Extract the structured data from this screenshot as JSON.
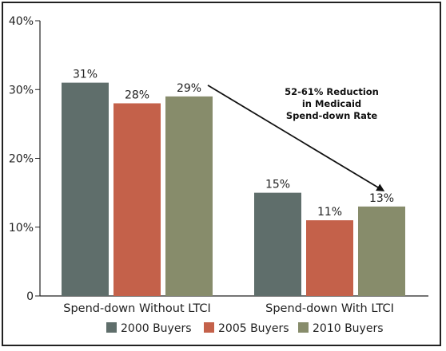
{
  "chart_data": {
    "type": "bar",
    "categories": [
      "Spend-down Without LTCI",
      "Spend-down With LTCI"
    ],
    "series": [
      {
        "name": "2000 Buyers",
        "values": [
          31,
          15
        ],
        "labels": [
          "31%",
          "15%"
        ]
      },
      {
        "name": "2005 Buyers",
        "values": [
          28,
          11
        ],
        "labels": [
          "28%",
          "11%"
        ]
      },
      {
        "name": "2010 Buyers",
        "values": [
          29,
          13
        ],
        "labels": [
          "29%",
          "13%"
        ]
      }
    ],
    "ylim": [
      0,
      40
    ],
    "yticks": [
      0,
      10,
      20,
      30,
      40
    ],
    "ytick_labels": [
      "0",
      "10%",
      "20%",
      "30%",
      "40%"
    ],
    "legend_position": "bottom",
    "colors": [
      "#5f6e6b",
      "#c4614a",
      "#878c6b"
    ],
    "annotation": {
      "lines": [
        "52-61% Reduction",
        "in Medicaid",
        "Spend-down Rate"
      ],
      "arrow_from": {
        "series": 2,
        "category": 0
      },
      "arrow_to": {
        "series": 2,
        "category": 1
      }
    }
  }
}
